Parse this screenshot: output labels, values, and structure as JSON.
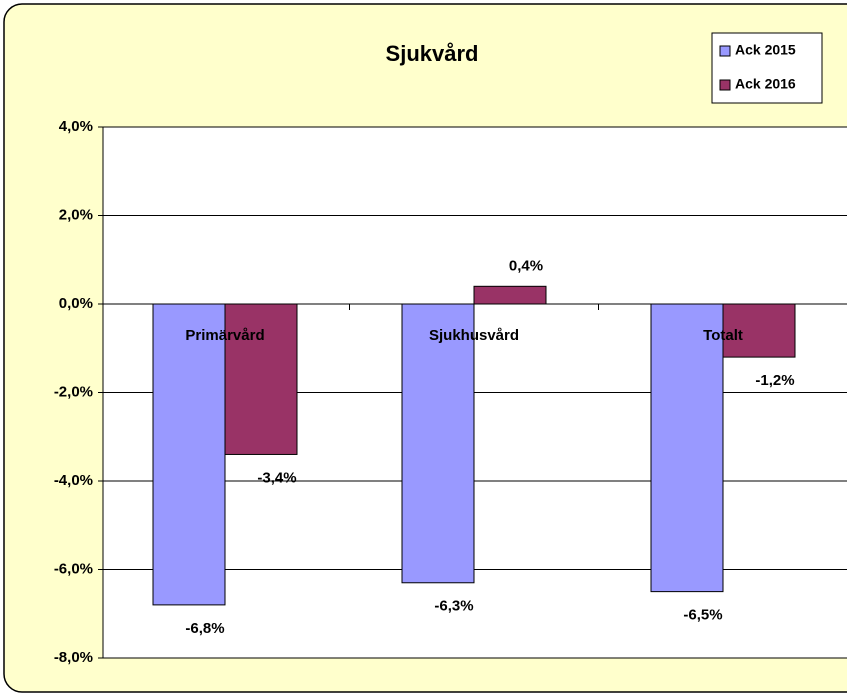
{
  "chart_data": {
    "type": "bar",
    "title": "Sjukvård",
    "categories": [
      "Primärvård",
      "Sjukhusvård",
      "Totalt"
    ],
    "series": [
      {
        "name": "Ack 2015",
        "color": "#9999ff",
        "values": [
          -6.8,
          -6.3,
          -6.5
        ],
        "value_labels": [
          "-6,8%",
          "-6,3%",
          "-6,5%"
        ]
      },
      {
        "name": "Ack 2016",
        "color": "#993366",
        "values": [
          -3.4,
          0.4,
          -1.2
        ],
        "value_labels": [
          "-3,4%",
          "0,4%",
          "-1,2%"
        ]
      }
    ],
    "ylim": [
      -8,
      4
    ],
    "yticks": [
      {
        "value": -8,
        "label": "-8,0%"
      },
      {
        "value": -6,
        "label": "-6,0%"
      },
      {
        "value": -4,
        "label": "-4,0%"
      },
      {
        "value": -2,
        "label": "-2,0%"
      },
      {
        "value": 0,
        "label": "0,0%"
      },
      {
        "value": 2,
        "label": "2,0%"
      },
      {
        "value": 4,
        "label": "4,0%"
      }
    ],
    "grid": true,
    "legend": "top-right"
  }
}
